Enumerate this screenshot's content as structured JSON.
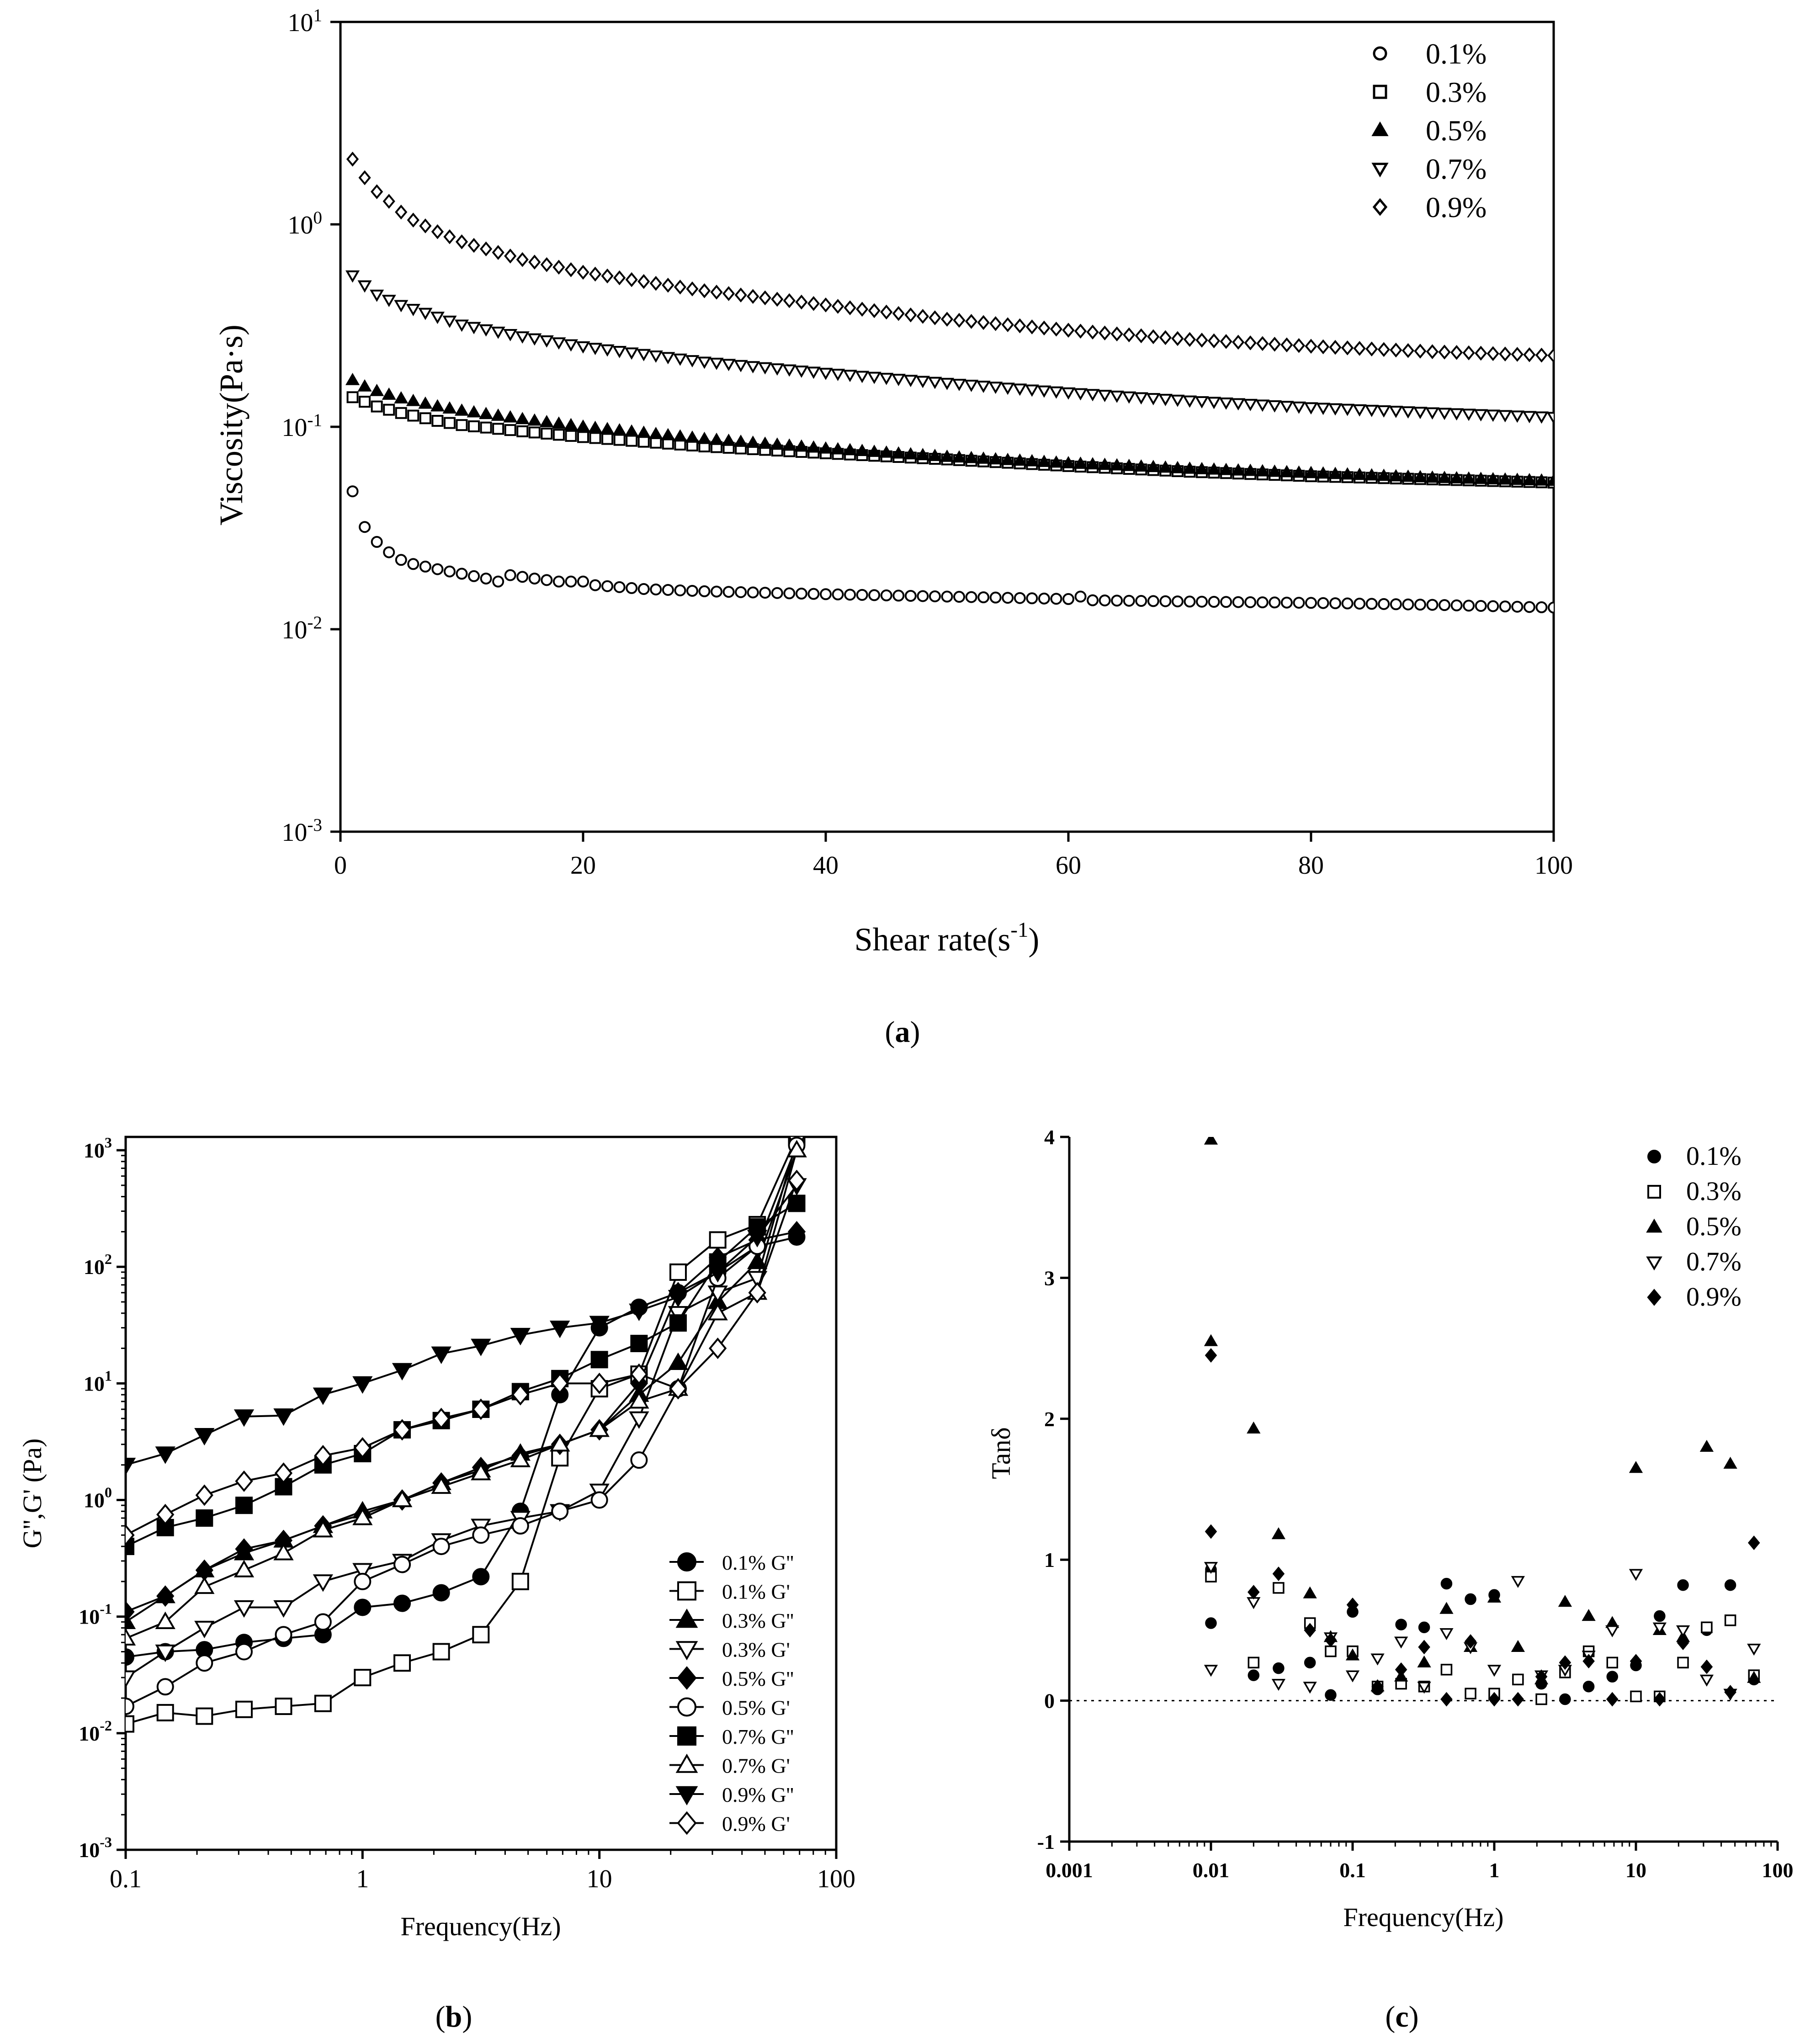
{
  "figure": {
    "panels": [
      "a",
      "b",
      "c"
    ],
    "caption_a": "a",
    "caption_b": "b",
    "caption_c": "c"
  },
  "chart_data": [
    {
      "id": "a",
      "type": "scatter",
      "xscale": "linear",
      "yscale": "log",
      "xlabel": "Shear rate(s⁻¹)",
      "ylabel": "Viscosity(Pa·s)",
      "xlim": [
        0,
        100
      ],
      "ylim": [
        0.001,
        10
      ],
      "xticks": [
        "0",
        "20",
        "40",
        "60",
        "80",
        "100"
      ],
      "yticks": [
        {
          "base": "10",
          "exp": "1"
        },
        {
          "base": "10",
          "exp": "0"
        },
        {
          "base": "10",
          "exp": "-1"
        },
        {
          "base": "10",
          "exp": "-2"
        },
        {
          "base": "10",
          "exp": "-3"
        }
      ],
      "legend_position": "top-right",
      "series": [
        {
          "name": "0.1%",
          "marker": "circle-open",
          "x": [
            1,
            2,
            3,
            4,
            5,
            6,
            8,
            10,
            12,
            13,
            14,
            16,
            18,
            20,
            21,
            25,
            30,
            40,
            50,
            60,
            61,
            62,
            70,
            80,
            90,
            100
          ],
          "y": [
            0.048,
            0.032,
            0.027,
            0.024,
            0.022,
            0.021,
            0.0198,
            0.0188,
            0.0178,
            0.0172,
            0.0185,
            0.0178,
            0.0172,
            0.0172,
            0.0165,
            0.0158,
            0.0154,
            0.0149,
            0.0145,
            0.0141,
            0.0145,
            0.0139,
            0.0137,
            0.0135,
            0.0132,
            0.0128
          ]
        },
        {
          "name": "0.3%",
          "marker": "square-open",
          "x": [
            1,
            2,
            3,
            5,
            8,
            10,
            15,
            20,
            30,
            40,
            50,
            60,
            70,
            80,
            90,
            100
          ],
          "y": [
            0.14,
            0.133,
            0.126,
            0.117,
            0.107,
            0.102,
            0.095,
            0.089,
            0.08,
            0.074,
            0.069,
            0.064,
            0.06,
            0.057,
            0.055,
            0.053
          ]
        },
        {
          "name": "0.5%",
          "marker": "triangle-filled",
          "x": [
            1,
            2,
            3,
            5,
            8,
            10,
            15,
            20,
            30,
            40,
            50,
            60,
            70,
            80,
            90,
            100
          ],
          "y": [
            0.17,
            0.158,
            0.15,
            0.138,
            0.126,
            0.12,
            0.109,
            0.1,
            0.087,
            0.078,
            0.071,
            0.066,
            0.062,
            0.059,
            0.056,
            0.054
          ]
        },
        {
          "name": "0.7%",
          "marker": "triangle-down-open",
          "x": [
            1,
            2,
            3,
            5,
            8,
            10,
            15,
            20,
            30,
            40,
            50,
            60,
            70,
            80,
            90,
            100
          ],
          "y": [
            0.56,
            0.5,
            0.45,
            0.4,
            0.35,
            0.32,
            0.28,
            0.25,
            0.21,
            0.185,
            0.165,
            0.148,
            0.135,
            0.125,
            0.118,
            0.112
          ]
        },
        {
          "name": "0.9%",
          "marker": "diamond-open",
          "x": [
            1,
            2,
            3,
            4,
            5,
            6,
            8,
            10,
            15,
            20,
            30,
            40,
            50,
            60,
            70,
            80,
            90,
            100
          ],
          "y": [
            2.1,
            1.7,
            1.45,
            1.3,
            1.15,
            1.05,
            0.92,
            0.82,
            0.67,
            0.58,
            0.47,
            0.4,
            0.34,
            0.3,
            0.27,
            0.25,
            0.235,
            0.225
          ]
        }
      ]
    },
    {
      "id": "b",
      "type": "line",
      "xscale": "log",
      "yscale": "log",
      "xlabel": "Frequency(Hz)",
      "ylabel": "G'',G' (Pa)",
      "xlim": [
        0.1,
        100
      ],
      "ylim": [
        0.001,
        1300
      ],
      "xticks": [
        "0.1",
        "1",
        "10",
        "100"
      ],
      "yticks": [
        {
          "base": "10",
          "exp": "3"
        },
        {
          "base": "10",
          "exp": "2"
        },
        {
          "base": "10",
          "exp": "1"
        },
        {
          "base": "10",
          "exp": "0"
        },
        {
          "base": "10",
          "exp": "-1"
        },
        {
          "base": "10",
          "exp": "-2"
        },
        {
          "base": "10",
          "exp": "-3"
        }
      ],
      "legend_position": "bottom-right",
      "x": [
        0.1,
        0.147,
        0.215,
        0.316,
        0.464,
        0.681,
        1,
        1.47,
        2.15,
        3.16,
        4.64,
        6.81,
        10,
        14.7,
        21.5,
        31.6,
        46.4,
        68.1
      ],
      "series": [
        {
          "name": "0.1% G''",
          "marker": "circle-filled",
          "values": [
            0.045,
            0.05,
            0.052,
            0.06,
            0.065,
            0.07,
            0.12,
            0.13,
            0.16,
            0.22,
            0.8,
            8,
            30,
            45,
            60,
            90,
            150,
            180
          ]
        },
        {
          "name": "0.1% G'",
          "marker": "square-open",
          "values": [
            0.012,
            0.015,
            0.014,
            0.016,
            0.017,
            0.018,
            0.03,
            0.04,
            0.05,
            0.07,
            0.2,
            2.3,
            9,
            12,
            90,
            170,
            230,
            1300
          ]
        },
        {
          "name": "0.3% G''",
          "marker": "triangle-filled",
          "values": [
            0.09,
            0.15,
            0.25,
            0.35,
            0.45,
            0.6,
            0.8,
            1,
            1.4,
            1.8,
            2.5,
            3,
            4,
            8,
            15,
            50,
            110,
            1000
          ]
        },
        {
          "name": "0.3% G'",
          "marker": "triangle-down-open",
          "values": [
            0.03,
            0.05,
            0.08,
            0.12,
            0.12,
            0.2,
            0.25,
            0.3,
            0.45,
            0.6,
            0.7,
            0.8,
            1.2,
            5,
            40,
            60,
            80,
            1200
          ]
        },
        {
          "name": "0.5% G''",
          "marker": "diamond-filled",
          "values": [
            0.11,
            0.15,
            0.25,
            0.38,
            0.45,
            0.6,
            0.75,
            1,
            1.4,
            1.9,
            2.4,
            3,
            4,
            10,
            60,
            120,
            170,
            200
          ]
        },
        {
          "name": "0.5% G'",
          "marker": "circle-open",
          "values": [
            0.017,
            0.025,
            0.04,
            0.05,
            0.07,
            0.09,
            0.2,
            0.28,
            0.4,
            0.5,
            0.6,
            0.8,
            1,
            2.2,
            9,
            80,
            150,
            1100
          ]
        },
        {
          "name": "0.7% G''",
          "marker": "square-filled",
          "values": [
            0.4,
            0.58,
            0.7,
            0.9,
            1.3,
            2,
            2.5,
            4,
            4.8,
            6,
            8.5,
            11,
            16,
            22,
            33,
            110,
            220,
            350
          ]
        },
        {
          "name": "0.7% G'",
          "marker": "triangle-open",
          "values": [
            0.065,
            0.09,
            0.18,
            0.25,
            0.35,
            0.55,
            0.7,
            1,
            1.3,
            1.7,
            2.2,
            3,
            4,
            7,
            9,
            40,
            60,
            1000
          ]
        },
        {
          "name": "0.9% G''",
          "marker": "triangle-down-filled",
          "values": [
            2,
            2.5,
            3.6,
            5.2,
            5.3,
            8,
            10,
            13,
            18,
            21,
            26,
            30,
            33,
            42,
            55,
            90,
            180,
            500
          ]
        },
        {
          "name": "0.9% G'",
          "marker": "diamond-open",
          "values": [
            0.5,
            0.75,
            1.1,
            1.45,
            1.7,
            2.4,
            2.8,
            4,
            5,
            6,
            8,
            10,
            10,
            12,
            9,
            20,
            60,
            550
          ]
        }
      ]
    },
    {
      "id": "c",
      "type": "scatter",
      "xscale": "log",
      "yscale": "linear",
      "xlabel": "Frequency(Hz)",
      "ylabel": "Tanδ",
      "xlim": [
        0.001,
        100
      ],
      "ylim": [
        -1,
        4
      ],
      "xticks": [
        "0.001",
        "0.01",
        "0.1",
        "1",
        "10",
        "100"
      ],
      "yticks": [
        "4",
        "3",
        "2",
        "1",
        "0",
        "-1"
      ],
      "reference_line": 0,
      "legend_position": "top-right",
      "x": [
        0.01,
        0.02,
        0.03,
        0.05,
        0.07,
        0.1,
        0.15,
        0.22,
        0.32,
        0.46,
        0.68,
        1,
        1.47,
        2.15,
        3.16,
        4.64,
        6.81,
        10,
        14.7,
        21.5,
        31.6,
        46.4,
        68.1
      ],
      "series": [
        {
          "name": "0.1%",
          "marker": "circle-filled",
          "values": [
            0.55,
            0.18,
            0.23,
            0.27,
            0.04,
            0.63,
            0.08,
            0.54,
            0.52,
            0.83,
            0.72,
            0.75,
            0.15,
            0.12,
            0.01,
            0.1,
            0.17,
            0.25,
            0.6,
            0.82,
            0.5,
            0.82,
            0.15
          ]
        },
        {
          "name": "0.3%",
          "marker": "square-open",
          "values": [
            0.88,
            0.27,
            0.8,
            0.55,
            0.35,
            0.35,
            0.1,
            0.12,
            0.1,
            0.22,
            0.05,
            0.05,
            0.15,
            0.01,
            0.2,
            0.35,
            0.27,
            0.03,
            0.03,
            0.27,
            0.52,
            0.57,
            0.18
          ]
        },
        {
          "name": "0.5%",
          "marker": "triangle-filled",
          "values": [
            3.98,
            1.93,
            1.18,
            0.76,
            0.45,
            0.32,
            0.1,
            0.17,
            0.27,
            0.65,
            0.38,
            0.73,
            0.38,
            0.15,
            0.7,
            0.6,
            0.55,
            1.65,
            0.5,
            0.45,
            1.8,
            1.68,
            0.16
          ]
        },
        {
          "name": "0.7%",
          "marker": "triangle-down-open",
          "values": [
            0.22,
            0.7,
            0.12,
            0.1,
            0.45,
            0.18,
            0.3,
            0.42,
            0.1,
            0.48,
            0.38,
            0.22,
            0.85,
            0.18,
            0.22,
            0.32,
            0.5,
            0.9,
            0.52,
            0.5,
            0.15,
            0.05,
            0.37
          ]
        },
        {
          "name": "0.9%",
          "marker": "diamond-filled",
          "values": [
            2.45,
            0.77,
            0.9,
            0.5,
            0.43,
            0.68,
            0.1,
            0.22,
            0.38,
            0.01,
            0.42,
            0.01,
            0.01,
            0.17,
            0.27,
            0.28,
            0.01,
            0.28,
            0.01,
            0.41,
            0.24,
            0.06,
            1.12
          ]
        }
      ],
      "extra_points": [
        {
          "series": "0.1%",
          "x": 0.01,
          "y": 0.93
        },
        {
          "series": "0.5%",
          "x": 0.01,
          "y": 2.55
        },
        {
          "series": "0.9%",
          "x": 0.01,
          "y": 1.2
        },
        {
          "series": "0.7%",
          "x": 0.01,
          "y": 0.95
        }
      ]
    }
  ]
}
